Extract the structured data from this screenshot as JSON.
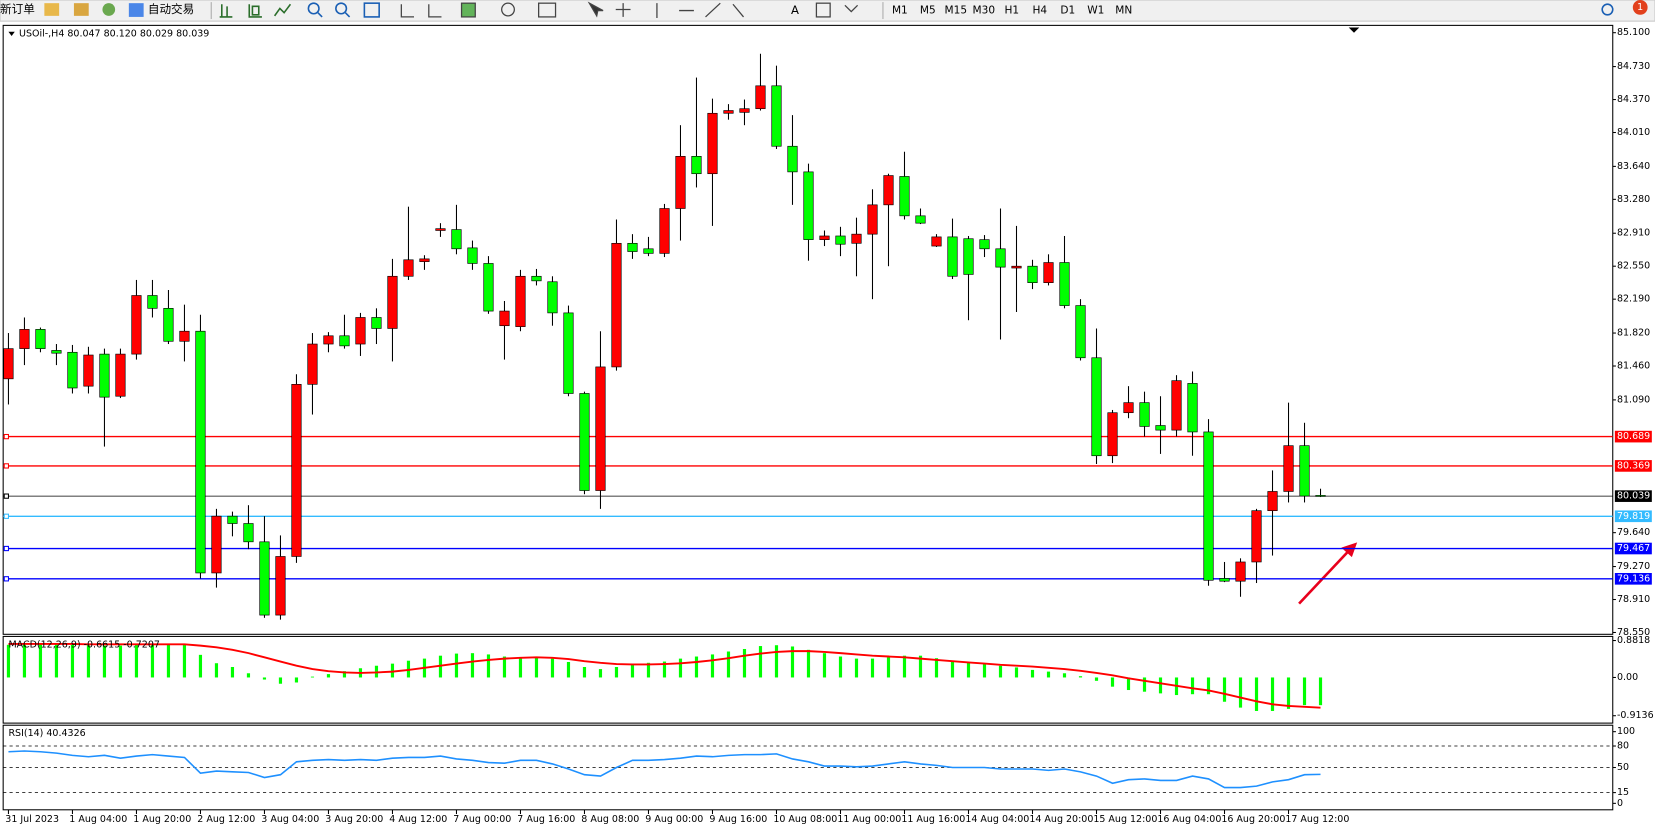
{
  "toolbar": {
    "new_order": "新订单",
    "auto_trading": "自动交易",
    "text_tool": "A",
    "timeframes": [
      "M1",
      "M5",
      "M15",
      "M30",
      "H1",
      "H4",
      "D1",
      "W1",
      "MN"
    ],
    "notifications": 1
  },
  "chart_data": [
    {
      "type": "candlestick",
      "title": "USOil-,H4  80.047 80.120 80.029 80.039",
      "bull_color": "#ff0000",
      "bear_color": "#00ff00",
      "wick_color": "#000000",
      "categories": [
        "31 Jul 2023",
        null,
        null,
        null,
        "1 Aug 04:00",
        null,
        null,
        null,
        "1 Aug 20:00",
        null,
        null,
        null,
        "2 Aug 12:00",
        null,
        null,
        null,
        "3 Aug 04:00",
        null,
        null,
        null,
        "3 Aug 20:00",
        null,
        null,
        null,
        "4 Aug 12:00",
        null,
        null,
        null,
        "7 Aug 00:00",
        null,
        null,
        null,
        "7 Aug 16:00",
        null,
        null,
        null,
        "8 Aug 08:00",
        null,
        null,
        null,
        "9 Aug 00:00",
        null,
        null,
        null,
        "9 Aug 16:00",
        null,
        null,
        null,
        "10 Aug 08:00",
        null,
        null,
        null,
        "11 Aug 00:00",
        null,
        null,
        null,
        "11 Aug 16:00",
        null,
        null,
        null,
        "14 Aug 04:00",
        null,
        null,
        null,
        "14 Aug 20:00",
        null,
        null,
        null,
        "15 Aug 12:00",
        null,
        null,
        null,
        "16 Aug 04:00",
        null,
        null,
        null,
        "16 Aug 20:00",
        null,
        null,
        null,
        "17 Aug 12:00",
        null,
        null
      ],
      "open": [
        81.32,
        81.65,
        81.86,
        81.63,
        81.61,
        81.24,
        81.59,
        81.13,
        81.59,
        82.23,
        82.09,
        81.73,
        81.84,
        79.2,
        79.82,
        79.74,
        79.54,
        78.74,
        79.38,
        81.26,
        81.7,
        81.79,
        81.7,
        81.99,
        81.87,
        82.44,
        82.6,
        82.94,
        82.95,
        82.75,
        82.58,
        81.9,
        81.89,
        82.44,
        82.38,
        82.04,
        81.16,
        80.1,
        81.45,
        82.8,
        82.74,
        82.69,
        83.18,
        83.75,
        83.56,
        84.22,
        84.23,
        84.27,
        84.52,
        83.86,
        83.58,
        82.84,
        82.88,
        82.8,
        82.9,
        83.22,
        83.53,
        83.1,
        82.77,
        82.87,
        82.85,
        82.84,
        82.74,
        82.53,
        82.55,
        82.37,
        82.59,
        82.12,
        81.55,
        80.48,
        80.95,
        81.06,
        80.81,
        80.76,
        81.27,
        80.74,
        79.14,
        79.11,
        79.32,
        79.88,
        80.09,
        80.59,
        80.047
      ],
      "high": [
        81.82,
        81.99,
        81.88,
        81.7,
        81.69,
        81.67,
        81.65,
        81.65,
        82.4,
        82.4,
        82.29,
        82.13,
        82.02,
        79.9,
        79.87,
        79.94,
        79.82,
        79.61,
        81.37,
        81.82,
        81.83,
        82.02,
        82.04,
        82.09,
        82.63,
        83.2,
        82.67,
        83.02,
        83.22,
        82.83,
        82.66,
        82.17,
        82.51,
        82.52,
        82.44,
        82.12,
        81.18,
        81.84,
        83.06,
        82.9,
        82.87,
        83.23,
        84.09,
        84.61,
        84.38,
        84.32,
        84.37,
        84.87,
        84.74,
        84.2,
        83.67,
        82.94,
        82.98,
        83.08,
        83.39,
        83.56,
        83.8,
        83.18,
        82.9,
        83.07,
        82.88,
        82.89,
        83.18,
        82.99,
        82.62,
        82.68,
        82.88,
        82.19,
        81.87,
        80.98,
        81.24,
        81.18,
        81.13,
        81.36,
        81.4,
        80.88,
        79.32,
        79.36,
        79.9,
        80.32,
        81.06,
        80.84,
        80.12
      ],
      "low": [
        81.04,
        81.47,
        81.61,
        81.47,
        81.16,
        81.16,
        80.58,
        81.11,
        81.53,
        81.99,
        81.7,
        81.51,
        79.14,
        79.04,
        79.6,
        79.46,
        78.71,
        78.69,
        79.31,
        80.93,
        81.61,
        81.65,
        81.57,
        81.7,
        81.51,
        82.4,
        82.51,
        82.87,
        82.68,
        82.51,
        82.03,
        81.53,
        81.84,
        82.34,
        81.9,
        81.13,
        80.06,
        79.9,
        81.41,
        82.63,
        82.66,
        82.65,
        82.83,
        83.41,
        82.99,
        84.15,
        84.09,
        84.25,
        83.83,
        83.22,
        82.61,
        82.77,
        82.66,
        82.44,
        82.19,
        82.55,
        83.06,
        83.01,
        82.76,
        82.41,
        81.96,
        82.65,
        81.75,
        82.05,
        82.3,
        82.34,
        82.09,
        81.52,
        80.39,
        80.4,
        80.89,
        80.69,
        80.5,
        80.69,
        80.48,
        79.06,
        79.1,
        78.94,
        79.09,
        79.39,
        79.97,
        79.97,
        80.029
      ],
      "close": [
        81.65,
        81.86,
        81.65,
        81.6,
        81.22,
        81.58,
        81.12,
        81.59,
        82.23,
        82.09,
        81.73,
        81.84,
        79.2,
        79.82,
        79.74,
        79.54,
        78.74,
        79.38,
        81.26,
        81.7,
        81.79,
        81.68,
        81.99,
        81.87,
        82.44,
        82.62,
        82.63,
        82.96,
        82.74,
        82.58,
        82.06,
        82.06,
        82.44,
        82.39,
        82.04,
        81.16,
        80.1,
        81.45,
        82.8,
        82.71,
        82.69,
        83.18,
        83.75,
        83.56,
        84.22,
        84.25,
        84.27,
        84.52,
        83.86,
        83.58,
        82.84,
        82.88,
        82.79,
        82.9,
        83.22,
        83.54,
        83.1,
        83.02,
        82.87,
        82.44,
        82.46,
        82.74,
        82.54,
        82.55,
        82.37,
        82.59,
        82.12,
        81.55,
        80.48,
        80.95,
        81.06,
        80.8,
        80.76,
        81.3,
        80.74,
        79.12,
        79.11,
        79.32,
        79.88,
        80.09,
        80.59,
        80.04,
        80.039
      ],
      "ylim": [
        78.53,
        85.18
      ],
      "yticks": [
        {
          "value": 85.1,
          "label": "85.100"
        },
        {
          "value": 84.73,
          "label": "84.730"
        },
        {
          "value": 84.37,
          "label": "84.370"
        },
        {
          "value": 84.01,
          "label": "84.010"
        },
        {
          "value": 83.64,
          "label": "83.640"
        },
        {
          "value": 83.28,
          "label": "83.280"
        },
        {
          "value": 82.91,
          "label": "82.910"
        },
        {
          "value": 82.55,
          "label": "82.550"
        },
        {
          "value": 82.19,
          "label": "82.190"
        },
        {
          "value": 81.82,
          "label": "81.820"
        },
        {
          "value": 81.46,
          "label": "81.460"
        },
        {
          "value": 81.09,
          "label": "81.090"
        },
        {
          "value": 79.64,
          "label": "79.640"
        },
        {
          "value": 79.27,
          "label": "79.270"
        },
        {
          "value": 78.91,
          "label": "78.910"
        },
        {
          "value": 78.55,
          "label": "78.550"
        }
      ],
      "levels": [
        80.689,
        80.369,
        80.039,
        79.819,
        79.467,
        79.136
      ],
      "level_colors": [
        "#ff0000",
        "#ff0000",
        "#000000",
        "#33bbff",
        "#0000ff",
        "#0000ff"
      ]
    },
    {
      "type": "macd",
      "title": "MACD(12,26,9) -0.6615 -0.7207",
      "histogram": {
        "color": "#00ff00",
        "values": [
          0.78,
          0.78,
          0.79,
          0.79,
          0.78,
          0.77,
          0.76,
          0.76,
          0.78,
          0.8,
          0.8,
          0.79,
          0.54,
          0.34,
          0.25,
          0.1,
          -0.05,
          -0.15,
          -0.12,
          0.02,
          0.08,
          0.15,
          0.22,
          0.28,
          0.33,
          0.4,
          0.45,
          0.52,
          0.57,
          0.58,
          0.55,
          0.5,
          0.48,
          0.48,
          0.45,
          0.37,
          0.25,
          0.2,
          0.25,
          0.32,
          0.35,
          0.38,
          0.45,
          0.5,
          0.55,
          0.62,
          0.68,
          0.75,
          0.77,
          0.74,
          0.66,
          0.58,
          0.5,
          0.45,
          0.45,
          0.48,
          0.52,
          0.52,
          0.46,
          0.4,
          0.36,
          0.33,
          0.28,
          0.24,
          0.18,
          0.14,
          0.1,
          0.03,
          -0.08,
          -0.22,
          -0.3,
          -0.34,
          -0.38,
          -0.42,
          -0.4,
          -0.4,
          -0.58,
          -0.72,
          -0.8,
          -0.8,
          -0.75,
          -0.66,
          -0.6615
        ]
      },
      "signal": {
        "color": "#ff0000",
        "values": [
          0.8,
          0.8,
          0.8,
          0.8,
          0.8,
          0.79,
          0.79,
          0.79,
          0.79,
          0.79,
          0.79,
          0.79,
          0.76,
          0.72,
          0.66,
          0.58,
          0.48,
          0.38,
          0.28,
          0.2,
          0.15,
          0.12,
          0.11,
          0.12,
          0.14,
          0.18,
          0.23,
          0.28,
          0.33,
          0.38,
          0.42,
          0.45,
          0.47,
          0.48,
          0.47,
          0.44,
          0.39,
          0.35,
          0.32,
          0.31,
          0.31,
          0.32,
          0.34,
          0.37,
          0.41,
          0.46,
          0.52,
          0.57,
          0.61,
          0.63,
          0.63,
          0.61,
          0.58,
          0.55,
          0.52,
          0.5,
          0.48,
          0.45,
          0.42,
          0.39,
          0.36,
          0.33,
          0.3,
          0.28,
          0.26,
          0.23,
          0.2,
          0.16,
          0.11,
          0.05,
          -0.02,
          -0.08,
          -0.14,
          -0.2,
          -0.26,
          -0.31,
          -0.39,
          -0.48,
          -0.57,
          -0.64,
          -0.68,
          -0.7,
          -0.7207
        ]
      },
      "ylim": [
        -1.09,
        0.98
      ],
      "yticks": [
        0.8818,
        {
          "value": 0,
          "label": "0.00"
        },
        -0.9136
      ]
    },
    {
      "type": "line",
      "title": "RSI(14) 40.4326",
      "color": "#1e90ff",
      "values": [
        72,
        73,
        72,
        70,
        67,
        65,
        67,
        63,
        66,
        68,
        66,
        64,
        42,
        45,
        44,
        43,
        36,
        40,
        58,
        60,
        61,
        60,
        61,
        60,
        63,
        64,
        64,
        66,
        62,
        60,
        57,
        56,
        60,
        60,
        55,
        48,
        40,
        38,
        50,
        60,
        60,
        61,
        63,
        66,
        65,
        67,
        68,
        68,
        69,
        62,
        58,
        52,
        52,
        51,
        52,
        55,
        58,
        55,
        53,
        50,
        50,
        50,
        48,
        48,
        48,
        46,
        48,
        44,
        38,
        28,
        33,
        34,
        32,
        32,
        38,
        34,
        22,
        22,
        24,
        30,
        33,
        40,
        40.4326
      ],
      "ylim": [
        -9,
        109
      ],
      "yticks": [
        100,
        80,
        50,
        15,
        0
      ],
      "levels": [
        80,
        50,
        15
      ]
    }
  ]
}
